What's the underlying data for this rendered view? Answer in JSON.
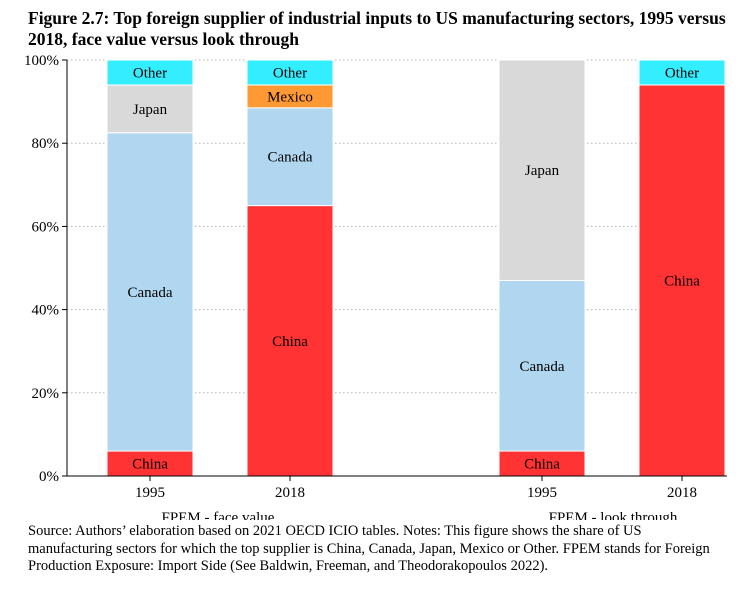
{
  "figure": {
    "title": "Figure 2.7: Top foreign supplier of industrial inputs to US manufacturing sectors, 1995 versus 2018, face value versus look through",
    "note": "Source: Authors’ elaboration based on 2021 OECD ICIO tables. Notes: This figure shows the share of US manufacturing sectors for which the top supplier is China, Canada, Japan, Mexico or Other. FPEM stands for Foreign Production Exposure: Import Side (See Baldwin, Freeman, and Theodorakopoulos 2022)."
  },
  "colors": {
    "China": "#ff3333",
    "Canada": "#b0d6f0",
    "Japan": "#d9d9d9",
    "Mexico": "#ff9933",
    "Other": "#33eeff",
    "grid": "#b3b3b3",
    "axis": "#000000",
    "bar_border": "#ffffff"
  },
  "chart_data": {
    "type": "bar",
    "stacked": true,
    "ylim": [
      0,
      100
    ],
    "yticks": [
      0,
      20,
      40,
      60,
      80,
      100
    ],
    "ytick_labels": [
      "0%",
      "20%",
      "40%",
      "60%",
      "80%",
      "100%"
    ],
    "grid": "horizontal dotted",
    "legend": "none (segments labeled inside bars)",
    "groups": [
      {
        "label": "FPEM - face value",
        "bars": [
          {
            "category": "1995",
            "segments": [
              {
                "name": "China",
                "value": 6
              },
              {
                "name": "Canada",
                "value": 76.5
              },
              {
                "name": "Japan",
                "value": 11.5
              },
              {
                "name": "Other",
                "value": 6
              }
            ]
          },
          {
            "category": "2018",
            "segments": [
              {
                "name": "China",
                "value": 65
              },
              {
                "name": "Canada",
                "value": 23.5
              },
              {
                "name": "Mexico",
                "value": 5.5
              },
              {
                "name": "Other",
                "value": 6
              }
            ]
          }
        ]
      },
      {
        "label": "FPEM - look through",
        "bars": [
          {
            "category": "1995",
            "segments": [
              {
                "name": "China",
                "value": 6
              },
              {
                "name": "Canada",
                "value": 41
              },
              {
                "name": "Japan",
                "value": 53
              }
            ]
          },
          {
            "category": "2018",
            "segments": [
              {
                "name": "China",
                "value": 94
              },
              {
                "name": "Other",
                "value": 6
              }
            ]
          }
        ]
      }
    ]
  }
}
